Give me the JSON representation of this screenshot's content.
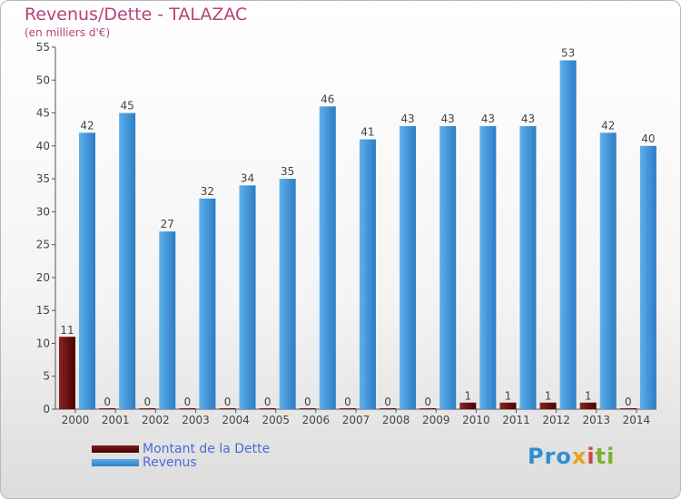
{
  "chart_data": {
    "type": "bar",
    "title": "Revenus/Dette - TALAZAC",
    "subtitle": "(en milliers d'€)",
    "categories": [
      "2000",
      "2001",
      "2002",
      "2003",
      "2004",
      "2005",
      "2006",
      "2007",
      "2008",
      "2009",
      "2010",
      "2011",
      "2012",
      "2013",
      "2014"
    ],
    "series": [
      {
        "name": "Montant de la Dette",
        "color": "#6b0f0f",
        "values": [
          11,
          0,
          0,
          0,
          0,
          0,
          0,
          0,
          0,
          0,
          1,
          1,
          1,
          1,
          0
        ]
      },
      {
        "name": "Revenus",
        "color": "#3d8fd6",
        "values": [
          42,
          45,
          27,
          32,
          34,
          35,
          46,
          41,
          43,
          43,
          43,
          43,
          53,
          42,
          40
        ]
      }
    ],
    "ylim": [
      0,
      55
    ],
    "yticks": [
      0,
      5,
      10,
      15,
      20,
      25,
      30,
      35,
      40,
      45,
      50,
      55
    ],
    "grid": false,
    "legend_position": "bottom-left"
  },
  "logo": {
    "text": "Proxiti",
    "parts": [
      "Pro",
      "x",
      "i",
      "ti"
    ]
  }
}
